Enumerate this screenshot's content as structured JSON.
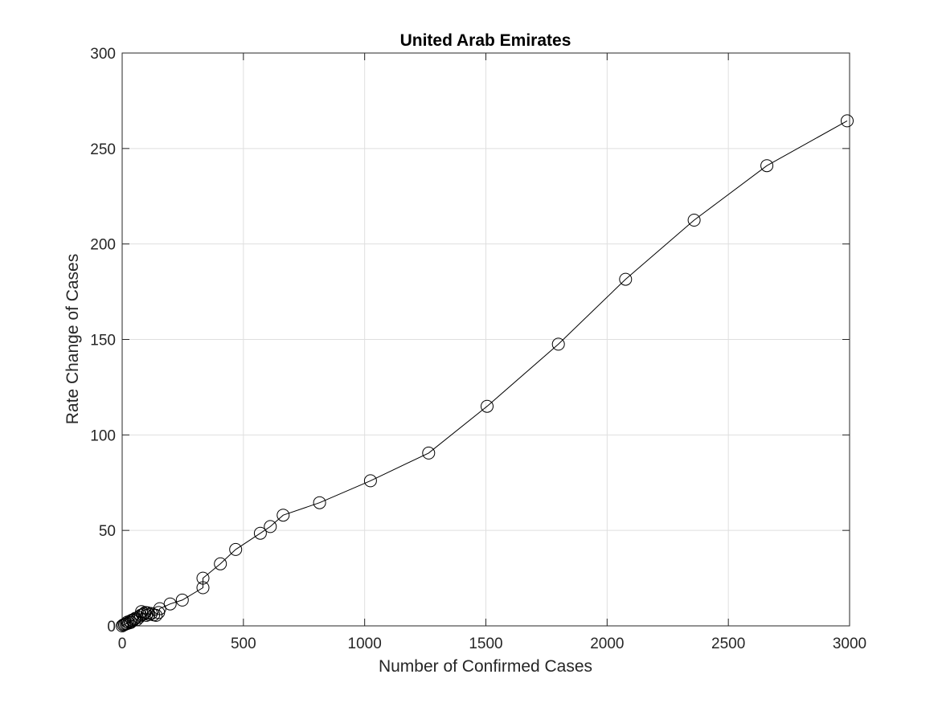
{
  "chart_data": {
    "type": "line",
    "title": "United Arab Emirates",
    "xlabel": "Number of Confirmed Cases",
    "ylabel": "Rate Change of Cases",
    "xlim": [
      0,
      3000
    ],
    "ylim": [
      0,
      300
    ],
    "xticks": [
      0,
      500,
      1000,
      1500,
      2000,
      2500,
      3000
    ],
    "yticks": [
      0,
      50,
      100,
      150,
      200,
      250,
      300
    ],
    "grid": true,
    "marker": "circle-open",
    "line_color": "#000000",
    "grid_color": "#dfdfdf",
    "series": [
      {
        "x": [
          0,
          5,
          10,
          15,
          20,
          22,
          28,
          32,
          35,
          40,
          45,
          50,
          55,
          60,
          70,
          76,
          80,
          85,
          90,
          95,
          100,
          105,
          110,
          120,
          130,
          140,
          150,
          155,
          198,
          248,
          333,
          333,
          405,
          468,
          570,
          611,
          664,
          814,
          1024,
          1264,
          1505,
          1799,
          2076,
          2359,
          2659,
          2990
        ],
        "y": [
          0,
          0.5,
          0.7,
          1,
          1.2,
          2,
          1.5,
          2.5,
          1.8,
          3,
          2.8,
          3.5,
          4,
          3.2,
          4.5,
          5.5,
          7.5,
          6,
          6.5,
          7,
          5.5,
          6.8,
          6,
          6.5,
          5.8,
          5.5,
          7,
          9,
          11.5,
          13.5,
          20,
          25,
          32.5,
          40,
          48.5,
          52,
          58,
          64.5,
          76,
          90.5,
          115,
          147.5,
          181.5,
          212.5,
          241,
          264.5
        ]
      }
    ]
  }
}
